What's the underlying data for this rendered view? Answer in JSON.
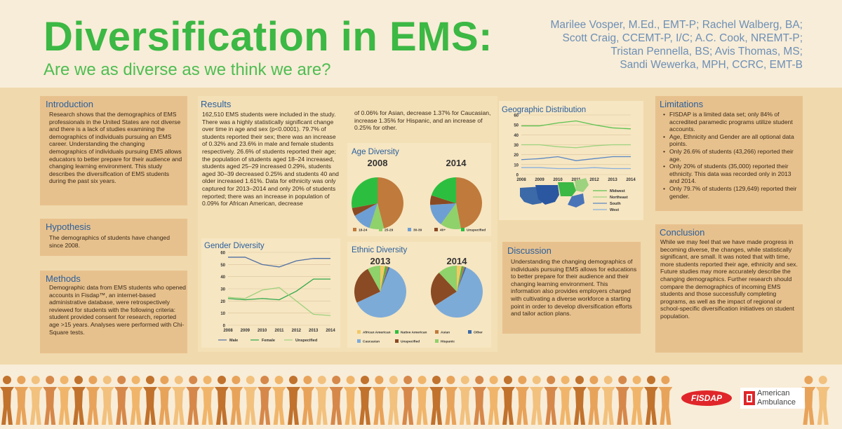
{
  "header": {
    "title": "Diversification in EMS:",
    "subtitle": "Are we as diverse as we think we are?",
    "authors": [
      "Marilee Vosper, M.Ed., EMT-P; Rachel Walberg, BA;",
      "Scott Craig, CCEMT-P, I/C; A.C. Cook, NREMT-P;",
      "Tristan Pennella, BS; Avis Thomas, MS;",
      "Sandi Wewerka, MPH, CCRC, EMT-B"
    ]
  },
  "introduction": {
    "heading": "Introduction",
    "body": "Research shows that the demographics of EMS professionals in the United States are not diverse and there is a lack of studies examining the demographics of individuals pursuing an EMS career. Understanding the changing demographics of individuals pursuing EMS allows educators to better prepare for their audience and changing learning environment. This study describes the diversification of EMS students during the past six years."
  },
  "hypothesis": {
    "heading": "Hypothesis",
    "body": "The demographics of students have changed since 2008."
  },
  "methods": {
    "heading": "Methods",
    "body": "Demographic data from EMS students who opened accounts in Fisdap™, an internet-based administrative database, were retrospectively reviewed for students with the following criteria: student provided consent for research, reported age >15 years. Analyses were performed with Chi-Square tests."
  },
  "results": {
    "heading": "Results",
    "body_left": "162,510 EMS students were included in the study. There was a highly statistically significant change over time in age and sex (p<0.0001). 79.7% of students reported their sex; there was an increase of 0.32% and 23.6% in male and female students respectively. 26.6% of students reported their age; the population of students aged 18–24 increased, students aged 25–29 increased 0.29%, students aged 30–39 decreased 0.25% and students 40 and older increased 1.61%. Data for ethnicity was only captured for 2013–2014 and only 20% of students reported; there was an increase in population of 0.09% for African American, decrease",
    "body_right": "of 0.06% for Asian, decrease 1.37% for Caucasian, increase 1.35% for Hispanic, and an increase of 0.25% for other."
  },
  "limitations": {
    "heading": "Limitations",
    "items": [
      "FISDAP is a limited data set; only 84% of accredited paramedic programs utilize student accounts.",
      "Age, Ethnicity and Gender are all optional data points.",
      "Only 26.6% of students (43,266) reported their age.",
      "Only 20% of students (35,000) reported their ethnicity. This data was recorded only in 2013 and 2014.",
      "Only 79.7% of students (129,649) reported their gender."
    ]
  },
  "discussion": {
    "heading": "Discussion",
    "body": "Understanding the changing demographics of individuals pursuing EMS allows for educations to better prepare for their audience and their changing learning environment. This information also provides employers charged with cultivating a diverse workforce a starting point in order to develop diversification efforts and tailor action plans."
  },
  "conclusion": {
    "heading": "Conclusion",
    "body": "While we may feel that we have made progress in becoming diverse, the changes, while statistically significant, are small. It was noted that with time, more students reported their age, ethnicity and sex. Future studies may more accurately describe the changing demographics. Further research should compare the demographics of incoming EMS students and those successfully completing programs, as well as the impact of regional or school-specific diversification initiatives on student population."
  },
  "logos": {
    "fisdap": "FISDAP",
    "american_ambulance_line1": "American",
    "american_ambulance_line2": "Ambulance"
  },
  "colors": {
    "accent_green": "#3cb844",
    "heading_blue": "#2a5f9e",
    "author_blue": "#6d8fb6"
  },
  "chart_data": [
    {
      "id": "gender",
      "type": "line",
      "title": "Gender Diversity",
      "x": [
        2008,
        2009,
        2010,
        2011,
        2012,
        2013,
        2014
      ],
      "ylim": [
        0,
        60
      ],
      "yticks": [
        0,
        10,
        20,
        30,
        40,
        50,
        60
      ],
      "series": [
        {
          "name": "Male",
          "color": "#4f6fa3",
          "values": [
            56,
            56,
            50,
            48,
            53,
            55,
            55
          ]
        },
        {
          "name": "Female",
          "color": "#2fa84a",
          "values": [
            22,
            21,
            22,
            21,
            28,
            38,
            38
          ]
        },
        {
          "name": "Unspecified",
          "color": "#9ed07c",
          "values": [
            23,
            22,
            29,
            31,
            20,
            9,
            8
          ]
        }
      ]
    },
    {
      "id": "age",
      "type": "pie",
      "title": "Age Diversity",
      "categories": [
        "18-24",
        "25-29",
        "30-39",
        "40+",
        "Unspecified"
      ],
      "colors": [
        "#c07a3b",
        "#8fd16a",
        "#6e9fd4",
        "#8a4a24",
        "#2cbf3f"
      ],
      "pies": [
        {
          "label": "2008",
          "values": [
            46,
            9,
            12,
            5,
            28
          ]
        },
        {
          "label": "2014",
          "values": [
            47,
            13,
            14,
            6,
            20
          ]
        }
      ]
    },
    {
      "id": "ethnic",
      "type": "pie",
      "title": "Ethnic Diversity",
      "categories": [
        "African American",
        "Native American",
        "Asian",
        "Other",
        "Caucasian",
        "Unspecified",
        "Hispanic"
      ],
      "colors": [
        "#f2c862",
        "#2cbf3f",
        "#c07a3b",
        "#3c6aa8",
        "#7dabd8",
        "#8a4a24",
        "#8fd16a"
      ],
      "pies": [
        {
          "label": "2013",
          "values": [
            3,
            1,
            1,
            1,
            62,
            24,
            8
          ]
        },
        {
          "label": "2014",
          "values": [
            3,
            1,
            1,
            1,
            60,
            22,
            12
          ]
        }
      ]
    },
    {
      "id": "geo",
      "type": "line",
      "title": "Geographic Distribution",
      "x": [
        2008,
        2009,
        2010,
        2011,
        2012,
        2013,
        2014
      ],
      "ylim": [
        0,
        60
      ],
      "yticks": [
        0,
        10,
        20,
        30,
        40,
        50,
        60
      ],
      "series": [
        {
          "name": "Midwest",
          "color": "#5cc24f",
          "values": [
            49,
            49,
            52,
            54,
            50,
            47,
            46
          ]
        },
        {
          "name": "Northeast",
          "color": "#9dd27e",
          "values": [
            30,
            30,
            28,
            27,
            29,
            30,
            30
          ]
        },
        {
          "name": "South",
          "color": "#5c88c2",
          "values": [
            15,
            16,
            18,
            14,
            16,
            18,
            18
          ]
        },
        {
          "name": "West",
          "color": "#8ab0dc",
          "values": [
            7,
            7,
            6,
            6,
            7,
            6,
            6
          ]
        }
      ]
    }
  ]
}
